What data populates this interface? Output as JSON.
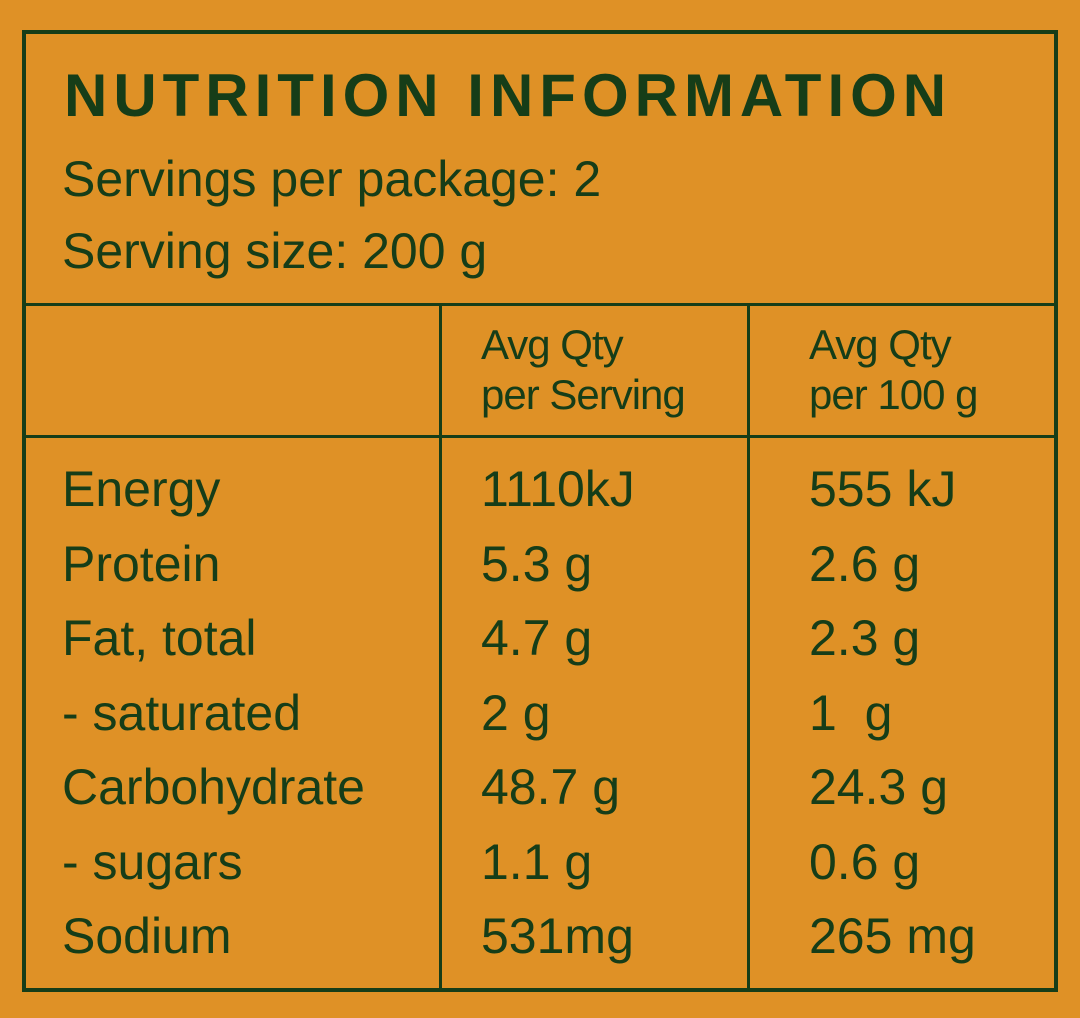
{
  "panel": {
    "title": "NUTRITION INFORMATION",
    "servings_per_package": "Servings per package: 2",
    "serving_size": "Serving size: 200 g"
  },
  "table": {
    "columns": [
      {
        "line1": "",
        "line2": ""
      },
      {
        "line1": "Avg Qty",
        "line2": "per Serving"
      },
      {
        "line1": "Avg Qty",
        "line2": "per 100 g"
      }
    ],
    "rows": [
      {
        "nutrient": "Energy",
        "per_serving": "1110kJ",
        "per_100g": "555 kJ"
      },
      {
        "nutrient": "Protein",
        "per_serving": "5.3 g",
        "per_100g": "2.6 g"
      },
      {
        "nutrient": "Fat, total",
        "per_serving": "4.7 g",
        "per_100g": "2.3 g"
      },
      {
        "nutrient": "- saturated",
        "per_serving": "2 g",
        "per_100g": "1  g"
      },
      {
        "nutrient": "Carbohydrate",
        "per_serving": "48.7 g",
        "per_100g": "24.3 g"
      },
      {
        "nutrient": "- sugars",
        "per_serving": "1.1 g",
        "per_100g": "0.6 g"
      },
      {
        "nutrient": "Sodium",
        "per_serving": "531mg",
        "per_100g": "265 mg"
      }
    ]
  },
  "colors": {
    "background": "#df9126",
    "ink": "#163d18"
  }
}
